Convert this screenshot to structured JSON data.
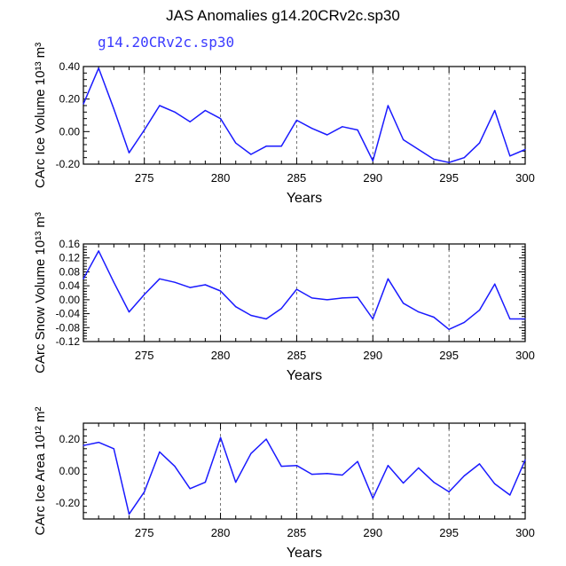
{
  "figure": {
    "title": "JAS Anomalies g14.20CRv2c.sp30",
    "subtitle": "g14.20CRv2c.sp30"
  },
  "colors": {
    "line": "#1a1aff",
    "axis": "#000000",
    "grid": "#555555",
    "subtitle": "#3b3bff"
  },
  "chart_data": [
    {
      "type": "line",
      "title": "",
      "xlabel": "Years",
      "ylabel": "CArc Ice Volume 10¹³ m³",
      "ylim": [
        -0.2,
        0.4
      ],
      "xlim": [
        271,
        300
      ],
      "xticks": [
        275,
        280,
        285,
        290,
        295,
        300
      ],
      "yticks": [
        -0.2,
        0.0,
        0.2,
        0.4
      ],
      "ytick_labels": [
        "-0.20",
        "0.00",
        "0.20",
        "0.40"
      ],
      "grid_x": [
        275,
        280,
        285,
        290,
        295
      ],
      "series": [
        {
          "name": "g14.20CRv2c.sp30",
          "x": [
            271,
            272,
            273,
            274,
            275,
            276,
            277,
            278,
            279,
            280,
            281,
            282,
            283,
            284,
            285,
            286,
            287,
            288,
            289,
            290,
            291,
            292,
            293,
            294,
            295,
            296,
            297,
            298,
            299,
            300
          ],
          "values": [
            0.17,
            0.39,
            0.14,
            -0.13,
            0.01,
            0.16,
            0.12,
            0.06,
            0.13,
            0.08,
            -0.07,
            -0.14,
            -0.09,
            -0.09,
            0.07,
            0.02,
            -0.02,
            0.03,
            0.01,
            -0.18,
            0.16,
            -0.05,
            -0.11,
            -0.17,
            -0.19,
            -0.16,
            -0.07,
            0.13,
            -0.15,
            -0.11
          ]
        }
      ]
    },
    {
      "type": "line",
      "title": "",
      "xlabel": "Years",
      "ylabel": "CArc Snow Volume 10¹³ m³",
      "ylim": [
        -0.12,
        0.16
      ],
      "xlim": [
        271,
        300
      ],
      "xticks": [
        275,
        280,
        285,
        290,
        295,
        300
      ],
      "yticks": [
        -0.12,
        -0.08,
        -0.04,
        0.0,
        0.04,
        0.08,
        0.12,
        0.16
      ],
      "ytick_labels": [
        "-0.12",
        "-0.08",
        "-0.04",
        "0.00",
        "0.04",
        "0.08",
        "0.12",
        "0.16"
      ],
      "grid_x": [
        275,
        280,
        285,
        290,
        295
      ],
      "series": [
        {
          "name": "g14.20CRv2c.sp30",
          "x": [
            271,
            272,
            273,
            274,
            275,
            276,
            277,
            278,
            279,
            280,
            281,
            282,
            283,
            284,
            285,
            286,
            287,
            288,
            289,
            290,
            291,
            292,
            293,
            294,
            295,
            296,
            297,
            298,
            299,
            300
          ],
          "values": [
            0.06,
            0.14,
            0.05,
            -0.035,
            0.015,
            0.06,
            0.05,
            0.035,
            0.043,
            0.025,
            -0.02,
            -0.045,
            -0.055,
            -0.025,
            0.03,
            0.005,
            0.0,
            0.005,
            0.007,
            -0.055,
            0.06,
            -0.01,
            -0.035,
            -0.05,
            -0.085,
            -0.065,
            -0.03,
            0.045,
            -0.055,
            -0.055
          ]
        }
      ]
    },
    {
      "type": "line",
      "title": "",
      "xlabel": "Years",
      "ylabel": "CArc Ice Area 10¹² m²",
      "ylim": [
        -0.3,
        0.3
      ],
      "xlim": [
        271,
        300
      ],
      "xticks": [
        275,
        280,
        285,
        290,
        295,
        300
      ],
      "yticks": [
        -0.2,
        0.0,
        0.2
      ],
      "ytick_labels": [
        "-0.20",
        "0.00",
        "0.20"
      ],
      "grid_x": [
        275,
        280,
        285,
        290,
        295
      ],
      "series": [
        {
          "name": "g14.20CRv2c.sp30",
          "x": [
            271,
            272,
            273,
            274,
            275,
            276,
            277,
            278,
            279,
            280,
            281,
            282,
            283,
            284,
            285,
            286,
            287,
            288,
            289,
            290,
            291,
            292,
            293,
            294,
            295,
            296,
            297,
            298,
            299,
            300
          ],
          "values": [
            0.16,
            0.18,
            0.14,
            -0.27,
            -0.13,
            0.12,
            0.03,
            -0.11,
            -0.07,
            0.21,
            -0.07,
            0.11,
            0.2,
            0.03,
            0.035,
            -0.02,
            -0.015,
            -0.025,
            0.06,
            -0.17,
            0.035,
            -0.075,
            0.02,
            -0.07,
            -0.13,
            -0.03,
            0.045,
            -0.08,
            -0.15,
            0.07
          ]
        }
      ]
    }
  ]
}
